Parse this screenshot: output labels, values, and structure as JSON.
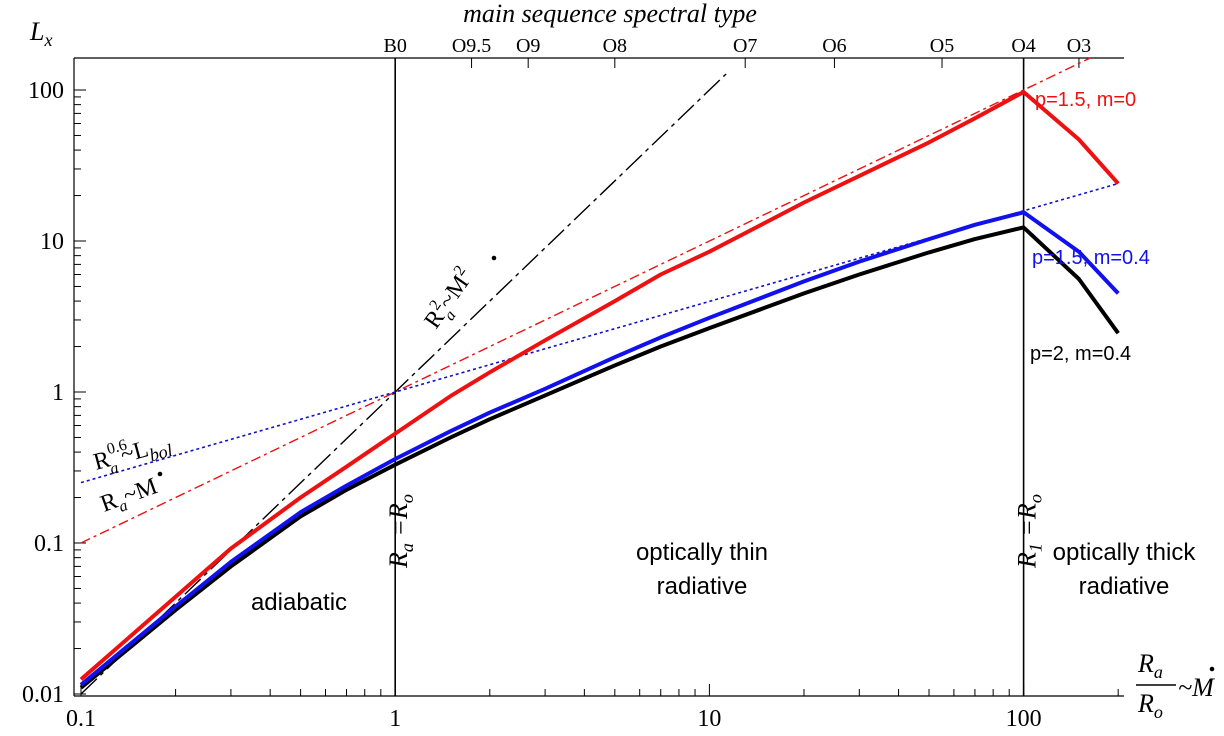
{
  "chart_data": {
    "type": "line",
    "title": "",
    "top_axis": {
      "label": "main sequence spectral type",
      "ticks": [
        {
          "label": "B0",
          "x": 1.0
        },
        {
          "label": "O9.5",
          "x": 1.75
        },
        {
          "label": "O9",
          "x": 2.65
        },
        {
          "label": "O8",
          "x": 5.0
        },
        {
          "label": "O7",
          "x": 13.0
        },
        {
          "label": "O6",
          "x": 25.0
        },
        {
          "label": "O5",
          "x": 55.0
        },
        {
          "label": "O4",
          "x": 100.0
        },
        {
          "label": "O3",
          "x": 150.0
        }
      ]
    },
    "x_axis": {
      "label_numerator": "R",
      "label_numerator_sub": "a",
      "label_denominator": "R",
      "label_denominator_sub": "o",
      "label_suffix": "~",
      "label_mdot": "M",
      "scale": "log",
      "range": [
        0.1,
        200
      ],
      "tick_labels": [
        "0.1",
        "1",
        "10",
        "100"
      ],
      "tick_values": [
        0.1,
        1,
        10,
        100
      ]
    },
    "y_axis": {
      "label": "L",
      "label_sub": "x",
      "scale": "log",
      "range": [
        0.01,
        160
      ],
      "tick_labels": [
        "0.01",
        "0.1",
        "1",
        "10",
        "100"
      ],
      "tick_values": [
        0.01,
        0.1,
        1,
        10,
        100
      ]
    },
    "vertical_lines": [
      {
        "x": 1.0,
        "label": "R",
        "label_sub": "a",
        "label_rest": " =R",
        "label_rest_sub": "o"
      },
      {
        "x": 100.0,
        "label": "R",
        "label_sub": "1",
        "label_rest": " =R",
        "label_rest_sub": "o"
      }
    ],
    "series": [
      {
        "name": "p=1.5, m=0",
        "color": "#ee1111",
        "points": [
          [
            0.1,
            0.0125
          ],
          [
            0.2,
            0.044
          ],
          [
            0.3,
            0.092
          ],
          [
            0.5,
            0.2
          ],
          [
            0.7,
            0.32
          ],
          [
            1.0,
            0.53
          ],
          [
            1.5,
            0.94
          ],
          [
            2.0,
            1.35
          ],
          [
            3.0,
            2.2
          ],
          [
            5.0,
            4.0
          ],
          [
            7.0,
            6.0
          ],
          [
            10,
            8.5
          ],
          [
            20,
            18
          ],
          [
            30,
            27
          ],
          [
            50,
            45
          ],
          [
            70,
            65
          ],
          [
            100,
            97
          ],
          [
            150,
            47
          ],
          [
            200,
            24
          ]
        ]
      },
      {
        "name": "p=1.5, m=0.4",
        "color": "#1111ee",
        "points": [
          [
            0.1,
            0.0115
          ],
          [
            0.2,
            0.038
          ],
          [
            0.3,
            0.075
          ],
          [
            0.5,
            0.16
          ],
          [
            0.7,
            0.24
          ],
          [
            1.0,
            0.36
          ],
          [
            1.5,
            0.55
          ],
          [
            2.0,
            0.73
          ],
          [
            3.0,
            1.05
          ],
          [
            5.0,
            1.7
          ],
          [
            7.0,
            2.3
          ],
          [
            10,
            3.1
          ],
          [
            20,
            5.4
          ],
          [
            30,
            7.3
          ],
          [
            50,
            10.3
          ],
          [
            70,
            12.8
          ],
          [
            100,
            15.5
          ],
          [
            150,
            8.5
          ],
          [
            200,
            4.5
          ]
        ]
      },
      {
        "name": "p=2, m=0.4",
        "color": "#000000",
        "points": [
          [
            0.1,
            0.011
          ],
          [
            0.2,
            0.036
          ],
          [
            0.3,
            0.07
          ],
          [
            0.5,
            0.15
          ],
          [
            0.7,
            0.225
          ],
          [
            1.0,
            0.33
          ],
          [
            1.5,
            0.5
          ],
          [
            2.0,
            0.66
          ],
          [
            3.0,
            0.95
          ],
          [
            5.0,
            1.5
          ],
          [
            7.0,
            2.0
          ],
          [
            10,
            2.65
          ],
          [
            20,
            4.5
          ],
          [
            30,
            6.0
          ],
          [
            50,
            8.4
          ],
          [
            70,
            10.3
          ],
          [
            100,
            12.3
          ],
          [
            150,
            5.6
          ],
          [
            200,
            2.45
          ]
        ]
      }
    ],
    "reference_lines": [
      {
        "color": "#000000",
        "style": "dash-dot",
        "slope": 2,
        "at_x1": 1.0,
        "label": "R",
        "label_sup": "2",
        "label_sub": "a",
        "label_rest": "~M",
        "label_rest_sup": "2"
      },
      {
        "color": "#ee1111",
        "style": "dash-dot",
        "slope": 1,
        "at_x1": 1.0,
        "label": "R",
        "label_sub": "a",
        "label_rest": "~M"
      },
      {
        "color": "#1111cc",
        "style": "dotted",
        "slope": 0.6,
        "at_x1": 1.0,
        "label": "R",
        "label_sup": "0.6",
        "label_sub": "a",
        "label_rest": "~L",
        "label_rest_sub": "bol"
      }
    ],
    "region_labels": [
      {
        "lines": [
          "adiabatic"
        ]
      },
      {
        "lines": [
          "optically thin",
          "radiative"
        ]
      },
      {
        "lines": [
          "optically thick",
          "radiative"
        ]
      }
    ],
    "grid": false
  }
}
